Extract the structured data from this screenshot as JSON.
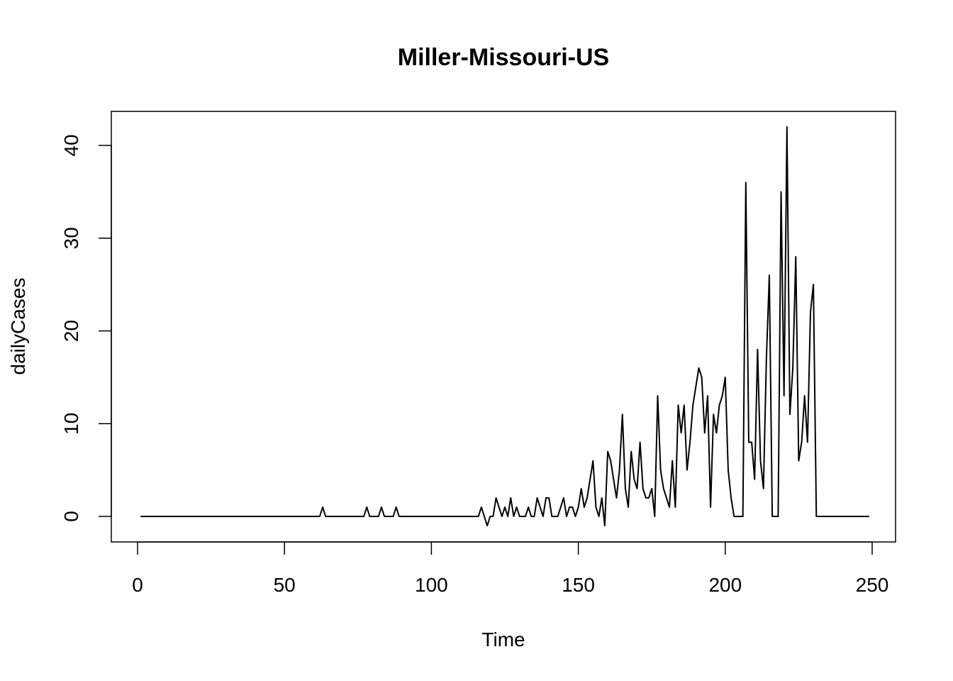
{
  "chart_data": {
    "type": "line",
    "title": "Miller-Missouri-US",
    "xlabel": "Time",
    "ylabel": "dailyCases",
    "xlim": [
      1,
      248
    ],
    "ylim": [
      -1,
      42
    ],
    "x_ticks": [
      0,
      50,
      100,
      150,
      200,
      250
    ],
    "y_ticks": [
      0,
      10,
      20,
      30,
      40
    ],
    "grid": false,
    "legend": "none",
    "line_color": "#000000",
    "x_start": 1,
    "series": [
      {
        "values": [
          0,
          0,
          0,
          0,
          0,
          0,
          0,
          0,
          0,
          0,
          0,
          0,
          0,
          0,
          0,
          0,
          0,
          0,
          0,
          0,
          0,
          0,
          0,
          0,
          0,
          0,
          0,
          0,
          0,
          0,
          0,
          0,
          0,
          0,
          0,
          0,
          0,
          0,
          0,
          0,
          0,
          0,
          0,
          0,
          0,
          0,
          0,
          0,
          0,
          0,
          0,
          0,
          0,
          0,
          0,
          0,
          0,
          0,
          0,
          0,
          0,
          0,
          1,
          0,
          0,
          0,
          0,
          0,
          0,
          0,
          0,
          0,
          0,
          0,
          0,
          0,
          0,
          1,
          0,
          0,
          0,
          0,
          1,
          0,
          0,
          0,
          0,
          1,
          0,
          0,
          0,
          0,
          0,
          0,
          0,
          0,
          0,
          0,
          0,
          0,
          0,
          0,
          0,
          0,
          0,
          0,
          0,
          0,
          0,
          0,
          0,
          0,
          0,
          0,
          0,
          0,
          1,
          0,
          -1,
          0,
          0,
          2,
          1,
          0,
          1,
          0,
          2,
          0,
          1,
          0,
          0,
          0,
          1,
          0,
          0,
          2,
          1,
          0,
          2,
          2,
          0,
          0,
          0,
          1,
          2,
          0,
          1,
          1,
          0,
          1,
          3,
          1,
          2,
          4,
          6,
          1,
          0,
          2,
          -1,
          7,
          6,
          4,
          2,
          5,
          11,
          3,
          1,
          7,
          4,
          3,
          8,
          3,
          2,
          2,
          3,
          0,
          13,
          5,
          3,
          2,
          1,
          6,
          1,
          12,
          9,
          12,
          5,
          8,
          12,
          14,
          16,
          15,
          9,
          13,
          1,
          11,
          9,
          12,
          13,
          15,
          5,
          2,
          0,
          0,
          0,
          0,
          36,
          8,
          8,
          4,
          18,
          6,
          3,
          17,
          26,
          0,
          0,
          0,
          35,
          13,
          42,
          11,
          16,
          28,
          6,
          8,
          13,
          8,
          22,
          25,
          0,
          0,
          0,
          0,
          0,
          0,
          0,
          0,
          0,
          0,
          0,
          0,
          0,
          0,
          0,
          0,
          0,
          0,
          0
        ]
      }
    ]
  }
}
